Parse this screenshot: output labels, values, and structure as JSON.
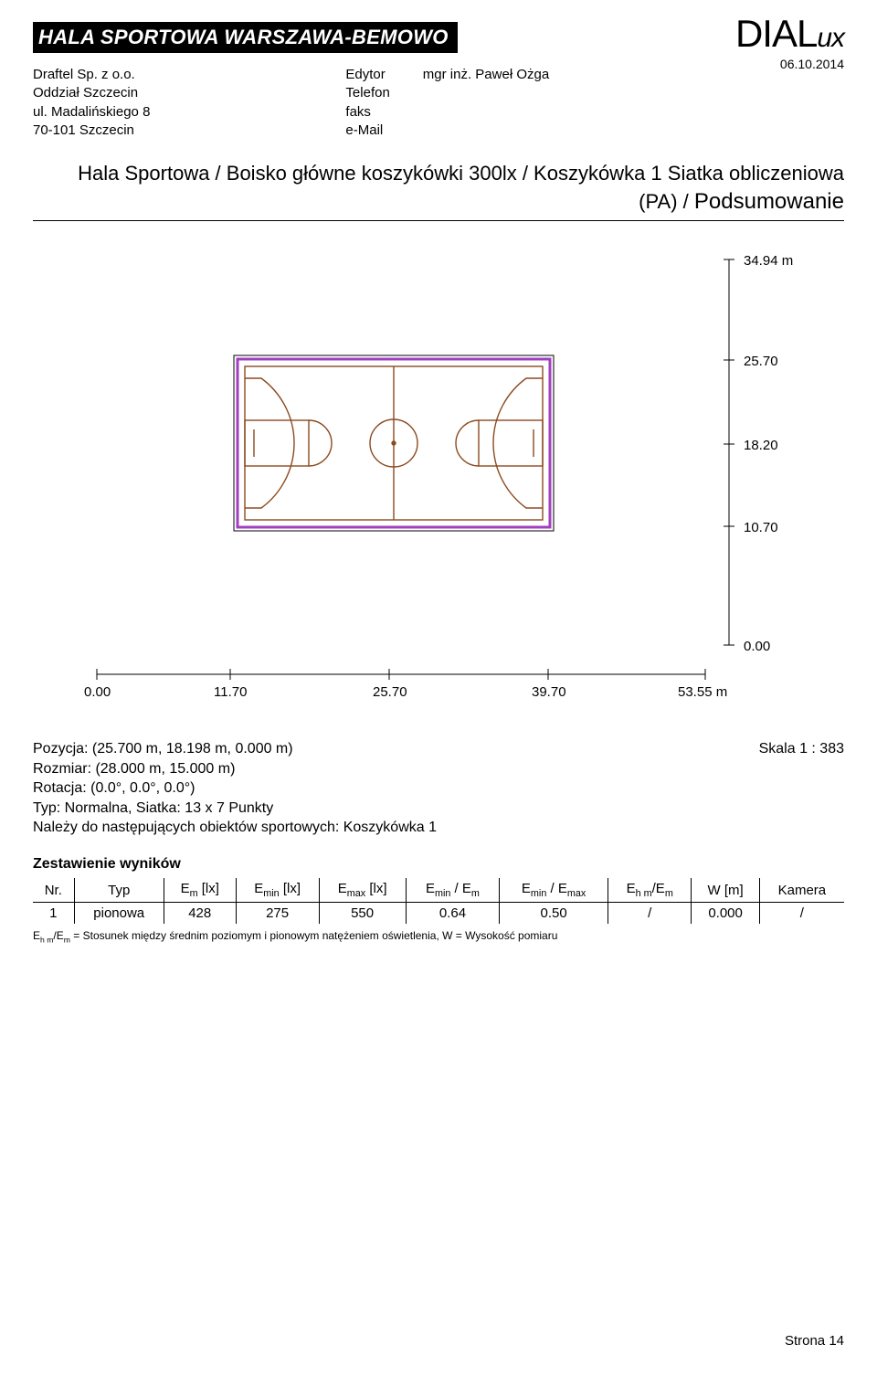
{
  "header": {
    "title": "HALA SPORTOWA WARSZAWA-BEMOWO",
    "date": "06.10.2014",
    "logo_main": "DIAL",
    "logo_suffix": "ux"
  },
  "company": {
    "line1": "Draftel Sp. z o.o.",
    "line2": "Oddział Szczecin",
    "line3": "ul. Madalińskiego 8",
    "line4": "70-101 Szczecin"
  },
  "contact_labels": {
    "l1": "Edytor",
    "l2": "Telefon",
    "l3": "faks",
    "l4": "e-Mail"
  },
  "contact_values": {
    "v1": "mgr inż. Paweł Ożga"
  },
  "section": {
    "line1": "Hala Sportowa / Boisko główne koszykówki 300lx / Koszykówka 1 Siatka obliczeniowa",
    "line2_prefix": "(PA) / ",
    "line2_big": "Podsumowanie"
  },
  "diagram": {
    "court_stroke": "#8b4a20",
    "frame_stroke": "#a040c0",
    "axis_stroke": "#000000",
    "y_labels": [
      "34.94 m",
      "25.70",
      "18.20",
      "10.70",
      "0.00"
    ],
    "x_labels": [
      "0.00",
      "11.70",
      "25.70",
      "39.70",
      "53.55 m"
    ],
    "scale_label": "Skala 1 : 383"
  },
  "meta_lines": {
    "pozycja": "Pozycja: (25.700 m, 18.198 m, 0.000 m)",
    "rozmiar": "Rozmiar: (28.000 m, 15.000 m)",
    "rotacja": "Rotacja: (0.0°, 0.0°, 0.0°)",
    "typ": "Typ: Normalna, Siatka: 13 x 7 Punkty",
    "nalezy": "Należy do następujących obiektów sportowych: Koszykówka 1"
  },
  "results": {
    "title": "Zestawienie wyników",
    "headers": [
      "Nr.",
      "Typ",
      "E<sub>m</sub> [lx]",
      "E<sub>min</sub> [lx]",
      "E<sub>max</sub> [lx]",
      "E<sub>min</sub> / E<sub>m</sub>",
      "E<sub>min</sub> / E<sub>max</sub>",
      "E<sub>h m</sub>/E<sub>m</sub>",
      "W [m]",
      "Kamera"
    ],
    "row": [
      "1",
      "pionowa",
      "428",
      "275",
      "550",
      "0.64",
      "0.50",
      "/",
      "0.000",
      "/"
    ],
    "footnote": "E<sub>h m</sub>/E<sub>m</sub> = Stosunek między średnim poziomym i pionowym natężeniem oświetlenia, W = Wysokość pomiaru"
  },
  "footer": {
    "page": "Strona 14"
  }
}
